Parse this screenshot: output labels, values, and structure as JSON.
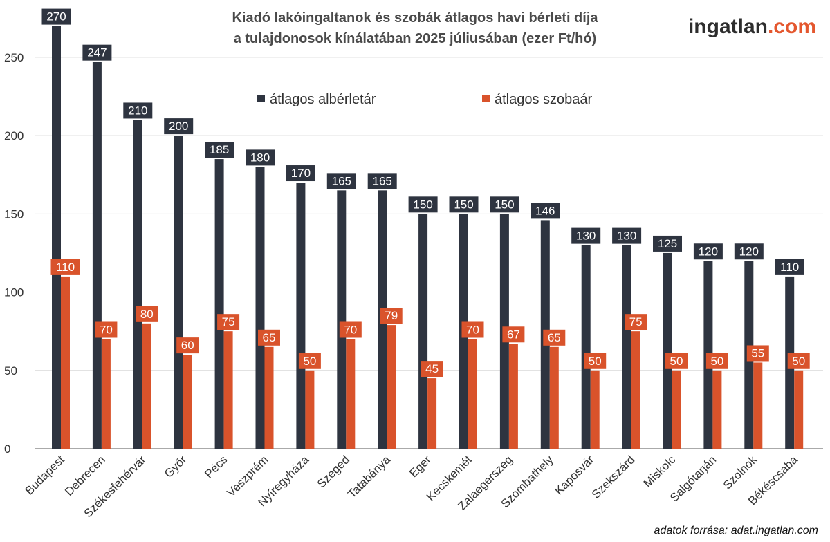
{
  "chart_data": {
    "type": "bar",
    "title_line1": "Kiadó lakóingaltanok és szobák átlagos havi bérleti díja",
    "title_line2": "a tulajdonosok kínálatában 2025 júliusában (ezer Ft/hó)",
    "xlabel": "",
    "ylabel": "",
    "ylim": [
      0,
      280
    ],
    "yticks": [
      0,
      50,
      100,
      150,
      200,
      250
    ],
    "grid": true,
    "legend_position": "top-center",
    "categories": [
      "Budapest",
      "Debrecen",
      "Székesfehérvár",
      "Győr",
      "Pécs",
      "Veszprém",
      "Nyíregyháza",
      "Szeged",
      "Tatabánya",
      "Eger",
      "Kecskemét",
      "Zalaegerszeg",
      "Szombathely",
      "Kaposvár",
      "Szekszárd",
      "Miskolc",
      "Salgótarján",
      "Szolnok",
      "Békéscsaba"
    ],
    "series": [
      {
        "name": "átlagos albérletár",
        "color": "#2e3440",
        "values": [
          270,
          247,
          210,
          200,
          185,
          180,
          170,
          165,
          165,
          150,
          150,
          150,
          146,
          130,
          130,
          125,
          120,
          120,
          110
        ]
      },
      {
        "name": "átlagos szobaár",
        "color": "#d9532b",
        "values": [
          110,
          70,
          80,
          60,
          75,
          65,
          50,
          70,
          79,
          45,
          70,
          67,
          65,
          50,
          75,
          50,
          50,
          55,
          50
        ]
      }
    ]
  },
  "branding": {
    "name_part1": "ingatlan",
    "name_part2": ".com"
  },
  "source": "adatok forrása: adat.ingatlan.com",
  "colors": {
    "grid": "#d9d9d9",
    "axis": "#555555"
  }
}
